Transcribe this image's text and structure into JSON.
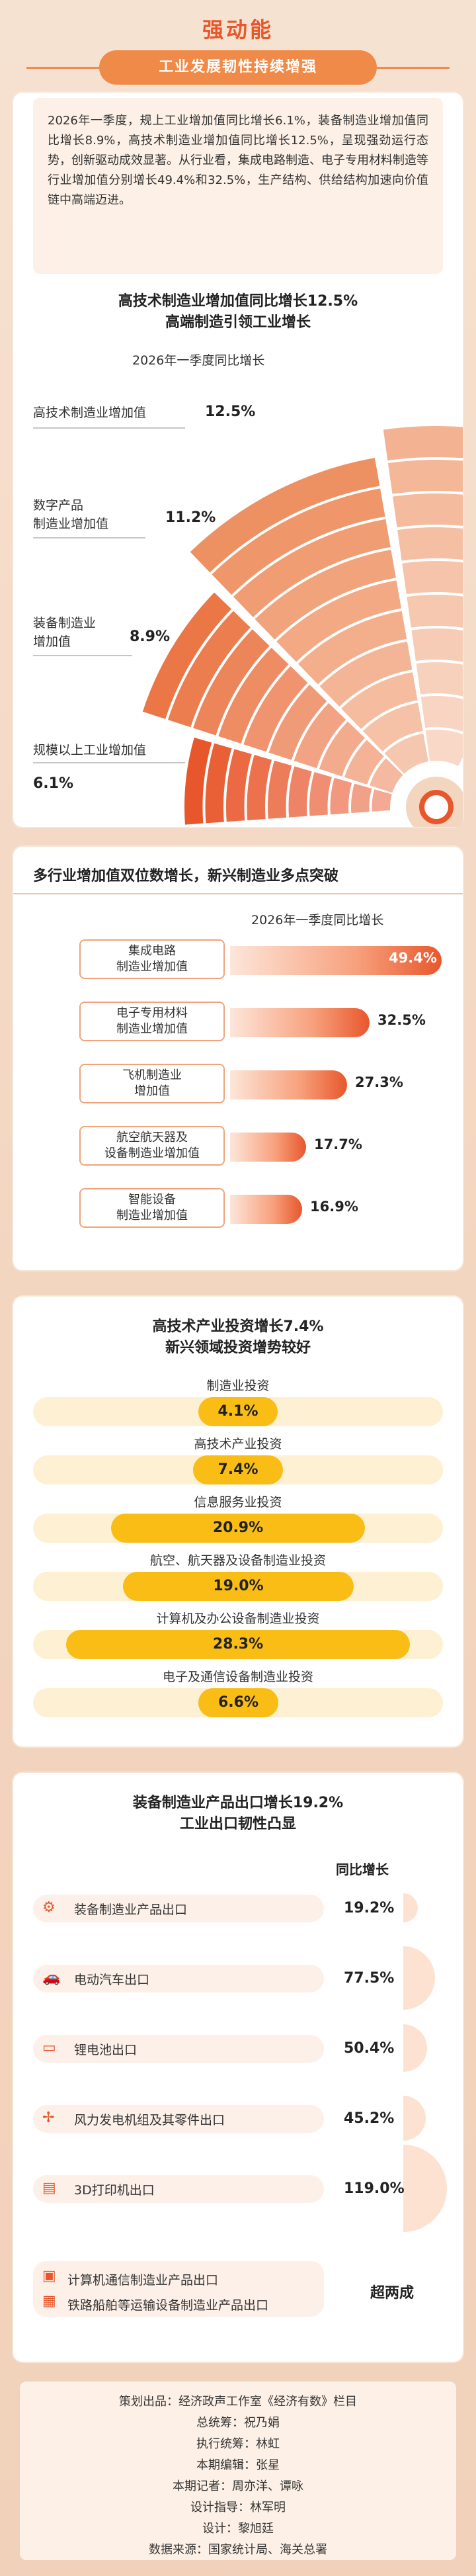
{
  "header": {
    "title": "强动能",
    "subtitle": "工业发展韧性持续增强",
    "intro": "2026年一季度，规上工业增加值同比增长6.1%，装备制造业增加值同比增长8.9%，高技术制造业增加值同比增长12.5%，呈现强劲运行态势，创新驱动成效显著。从行业看，集成电路制造、电子专用材料制造等行业增加值分别增长49.4%和32.5%，生产结构、供给结构加速向价值链中高端迈进。"
  },
  "section1": {
    "title_line1": "高技术制造业增加值同比增长12.5%",
    "title_line2": "高端制造引领工业增长",
    "subtitle": "2026年一季度同比增长",
    "items": [
      {
        "label": "高技术制造业增加值",
        "value": "12.5%"
      },
      {
        "label": "数字产品\n制造业增加值",
        "value": "11.2%"
      },
      {
        "label": "装备制造业\n增加值",
        "value": "8.9%"
      },
      {
        "label": "规模以上工业增加值",
        "value": "6.1%"
      }
    ]
  },
  "section2": {
    "title": "多行业增加值双位数增长，新兴制造业多点突破",
    "subtitle": "2026年一季度同比增长",
    "items": [
      {
        "label": "集成电路\n制造业增加值",
        "value": "49.4%",
        "num": 49.4
      },
      {
        "label": "电子专用材料\n制造业增加值",
        "value": "32.5%",
        "num": 32.5
      },
      {
        "label": "飞机制造业\n增加值",
        "value": "27.3%",
        "num": 27.3
      },
      {
        "label": "航空航天器及\n设备制造业增加值",
        "value": "17.7%",
        "num": 17.7
      },
      {
        "label": "智能设备\n制造业增加值",
        "value": "16.9%",
        "num": 16.9
      }
    ]
  },
  "section3": {
    "title_line1": "高技术产业投资增长7.4%",
    "title_line2": "新兴领域投资增势较好",
    "items": [
      {
        "label": "制造业投资",
        "value": "4.1%",
        "num": 4.1
      },
      {
        "label": "高技术产业投资",
        "value": "7.4%",
        "num": 7.4
      },
      {
        "label": "信息服务业投资",
        "value": "20.9%",
        "num": 20.9
      },
      {
        "label": "航空、航天器及设备制造业投资",
        "value": "19.0%",
        "num": 19.0
      },
      {
        "label": "计算机及办公设备制造业投资",
        "value": "28.3%",
        "num": 28.3
      },
      {
        "label": "电子及通信设备制造业投资",
        "value": "6.6%",
        "num": 6.6
      }
    ]
  },
  "section4": {
    "title_line1": "装备制造业产品出口增长19.2%",
    "title_line2": "工业出口韧性凸显",
    "column_header": "同比增长",
    "items": [
      {
        "label": "装备制造业产品出口",
        "value": "19.2%",
        "num": 19.2,
        "icon": "gear-icon",
        "glyph": "⚙"
      },
      {
        "label": "电动汽车出口",
        "value": "77.5%",
        "num": 77.5,
        "icon": "car-icon",
        "glyph": "🚗"
      },
      {
        "label": "锂电池出口",
        "value": "50.4%",
        "num": 50.4,
        "icon": "battery-icon",
        "glyph": "▭"
      },
      {
        "label": "风力发电机组及其零件出口",
        "value": "45.2%",
        "num": 45.2,
        "icon": "wind-turbine-icon",
        "glyph": "✢"
      },
      {
        "label": "3D打印机出口",
        "value": "119.0%",
        "num": 119.0,
        "icon": "printer-icon",
        "glyph": "▤"
      }
    ],
    "last_labels": [
      "计算机通信制造业产品出口",
      "铁路船舶等运输设备制造业产品出口"
    ],
    "last_value": "超两成"
  },
  "credits": {
    "lines": [
      "策划出品：经济政声工作室《经济有数》栏目",
      "总统筹：祝乃娟",
      "执行统筹：林虹",
      "本期编辑：张星",
      "本期记者：周亦洋、谭咏",
      "设计指导：林军明",
      "设计：黎旭廷",
      "数据来源：国家统计局、海关总署"
    ]
  },
  "colors": {
    "accent": "#e8572c",
    "orange": "#f08a48",
    "yellow": "#f9bd16",
    "peach": "#fdf1e7"
  }
}
